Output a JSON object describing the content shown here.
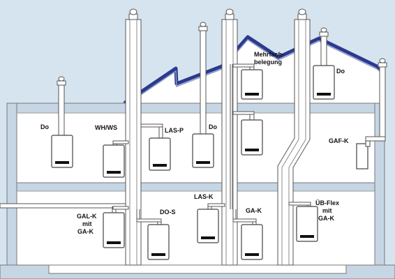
{
  "labels": {
    "do_left": "Do",
    "wh_ws": "WH/WS",
    "las_p": "LAS-P",
    "do_center": "Do",
    "mehrfach_1": "Mehrfach-",
    "mehrfach_2": "belegung",
    "do_right": "Do",
    "gaf_k": "GAF-K",
    "gal_k_1": "GAL-K",
    "gal_k_2": "mit",
    "gal_k_3": "GA-K",
    "do_s": "DO-S",
    "las_k": "LAS-K",
    "ga_k": "GA-K",
    "ueb_flex_1": "ÜB-Flex",
    "ueb_flex_2": "mit",
    "ueb_flex_3": "GA-K"
  },
  "colors": {
    "background": "#d6e4ef",
    "wall": "#ffffff",
    "wall_stroke": "#555555",
    "roof": "#2b3a8f",
    "ceiling_band": "#c6d6e4",
    "pipe": "#ffffff",
    "boiler_display": "#111111"
  }
}
